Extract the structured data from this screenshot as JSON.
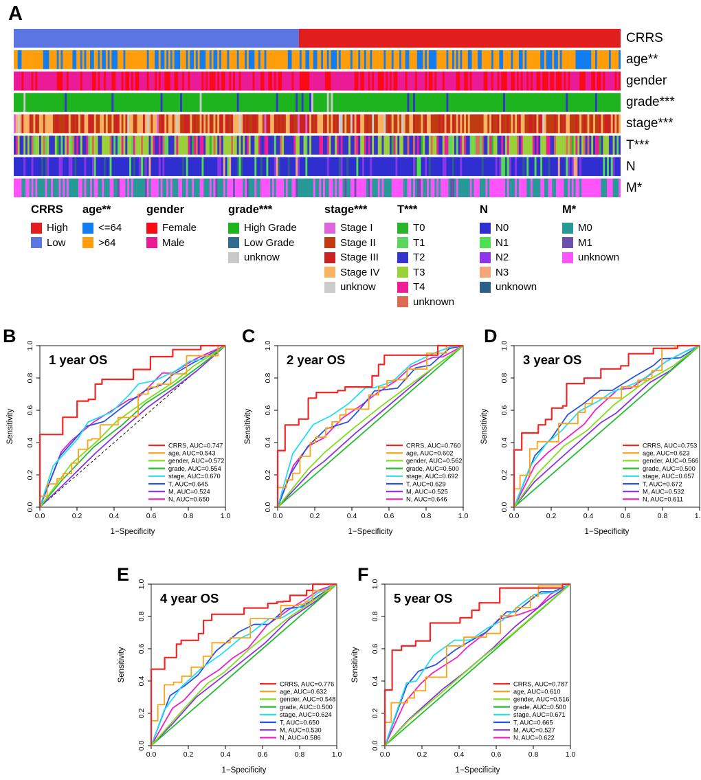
{
  "chart_data": [
    {
      "type": "heatmap",
      "panel_label": "A",
      "description": "Clinical annotation tracks of samples ordered by CRRS group",
      "tracks": [
        {
          "id": "CRRS",
          "label": "CRRS",
          "mode": "ordered",
          "segments": [
            {
              "name": "Low",
              "color": "#5b76e3",
              "fraction": 0.47
            },
            {
              "name": "High",
              "color": "#e11d1d",
              "fraction": 0.53
            }
          ]
        },
        {
          "id": "age",
          "label": "age**",
          "mode": "random",
          "categories": [
            {
              "name": "<=64",
              "color": "#127df0",
              "weight": 0.33
            },
            {
              "name": ">64",
              "color": "#ff9d0a",
              "weight": 0.67
            }
          ]
        },
        {
          "id": "gender",
          "label": "gender",
          "mode": "random",
          "categories": [
            {
              "name": "Female",
              "color": "#fa0a14",
              "weight": 0.35
            },
            {
              "name": "Male",
              "color": "#eb1a96",
              "weight": 0.65
            }
          ]
        },
        {
          "id": "grade",
          "label": "grade***",
          "mode": "random",
          "categories": [
            {
              "name": "High Grade",
              "color": "#1eb41e",
              "weight": 0.92
            },
            {
              "name": "Low Grade",
              "color": "#3534cd",
              "weight": 0.06
            },
            {
              "name": "unknow",
              "color": "#c9c9c9",
              "weight": 0.02
            }
          ]
        },
        {
          "id": "stage",
          "label": "stage***",
          "mode": "random",
          "categories": [
            {
              "name": "Stage I",
              "color": "#df65df",
              "weight": 0.03
            },
            {
              "name": "Stage II",
              "color": "#c03b10",
              "weight": 0.38
            },
            {
              "name": "Stage III",
              "color": "#cc2222",
              "weight": 0.24
            },
            {
              "name": "Stage IV",
              "color": "#f8b264",
              "weight": 0.32
            },
            {
              "name": "unknow",
              "color": "#cccccc",
              "weight": 0.03
            }
          ]
        },
        {
          "id": "T",
          "label": "T***",
          "mode": "random",
          "categories": [
            {
              "name": "T0",
              "color": "#2cb32c",
              "weight": 0.04
            },
            {
              "name": "T1",
              "color": "#5cd65c",
              "weight": 0.05
            },
            {
              "name": "T2",
              "color": "#3534cd",
              "weight": 0.28
            },
            {
              "name": "T3",
              "color": "#9ad13b",
              "weight": 0.38
            },
            {
              "name": "T4",
              "color": "#ef1d96",
              "weight": 0.16
            },
            {
              "name": "unknown",
              "color": "#dd6a55",
              "weight": 0.09
            }
          ]
        },
        {
          "id": "N",
          "label": "N",
          "mode": "random",
          "categories": [
            {
              "name": "N0",
              "color": "#2f2fd1",
              "weight": 0.66
            },
            {
              "name": "N1",
              "color": "#4fe050",
              "weight": 0.09
            },
            {
              "name": "N2",
              "color": "#8c35ea",
              "weight": 0.14
            },
            {
              "name": "N3",
              "color": "#f2a679",
              "weight": 0.03
            },
            {
              "name": "unknown",
              "color": "#2c5f88",
              "weight": 0.08
            }
          ]
        },
        {
          "id": "M",
          "label": "M*",
          "mode": "random",
          "categories": [
            {
              "name": "M0",
              "color": "#279a97",
              "weight": 0.45
            },
            {
              "name": "M1",
              "color": "#6b51ad",
              "weight": 0.05
            },
            {
              "name": "unknown",
              "color": "#fd54fb",
              "weight": 0.5
            }
          ]
        }
      ],
      "legend": [
        {
          "title": "CRRS",
          "items": [
            {
              "label": "High",
              "color": "#e11d1d"
            },
            {
              "label": "Low",
              "color": "#5b76e3"
            }
          ]
        },
        {
          "title": "age**",
          "items": [
            {
              "label": "<=64",
              "color": "#127df0"
            },
            {
              "label": ">64",
              "color": "#ff9d0a"
            }
          ]
        },
        {
          "title": "gender",
          "items": [
            {
              "label": "Female",
              "color": "#fa0a14"
            },
            {
              "label": "Male",
              "color": "#eb1a96"
            }
          ]
        },
        {
          "title": "grade***",
          "items": [
            {
              "label": "High Grade",
              "color": "#1eb41e"
            },
            {
              "label": "Low Grade",
              "color": "#2e6d8e"
            },
            {
              "label": "unknow",
              "color": "#c9c9c9"
            }
          ]
        },
        {
          "title": "stage***",
          "items": [
            {
              "label": "Stage I",
              "color": "#df65df"
            },
            {
              "label": "Stage II",
              "color": "#c03b10"
            },
            {
              "label": "Stage III",
              "color": "#cc2222"
            },
            {
              "label": "Stage IV",
              "color": "#f8b264"
            },
            {
              "label": "unknow",
              "color": "#cccccc"
            }
          ]
        },
        {
          "title": "T***",
          "items": [
            {
              "label": "T0",
              "color": "#2cb32c"
            },
            {
              "label": "T1",
              "color": "#5cd65c"
            },
            {
              "label": "T2",
              "color": "#3534cd"
            },
            {
              "label": "T3",
              "color": "#9ad13b"
            },
            {
              "label": "T4",
              "color": "#ef1d96"
            },
            {
              "label": "unknown",
              "color": "#dd6a55"
            }
          ]
        },
        {
          "title": "N",
          "items": [
            {
              "label": "N0",
              "color": "#2f2fd1"
            },
            {
              "label": "N1",
              "color": "#4fe050"
            },
            {
              "label": "N2",
              "color": "#8c35ea"
            },
            {
              "label": "N3",
              "color": "#f2a679"
            },
            {
              "label": "unknown",
              "color": "#2c5f88"
            }
          ]
        },
        {
          "title": "M*",
          "items": [
            {
              "label": "M0",
              "color": "#279a97"
            },
            {
              "label": "M1",
              "color": "#6b51ad"
            },
            {
              "label": "unknown",
              "color": "#fd54fb"
            }
          ]
        }
      ]
    },
    {
      "type": "line",
      "panel_label": "B",
      "title": "1 year OS",
      "xlabel": "1−Specificity",
      "ylabel": "Sensitivity",
      "xlim": [
        0,
        1
      ],
      "ylim": [
        0,
        1
      ],
      "ticks": [
        "0.0",
        "0.2",
        "0.4",
        "0.6",
        "0.8",
        "1.0"
      ],
      "series": [
        {
          "name": "CRRS",
          "auc": 0.747,
          "color": "#f62423",
          "legend_label": "CRRS, AUC=0.747"
        },
        {
          "name": "age",
          "auc": 0.543,
          "color": "#ffa113",
          "legend_label": "age, AUC=0.543"
        },
        {
          "name": "gender",
          "auc": 0.572,
          "color": "#7de01a",
          "legend_label": "gender, AUC=0.572"
        },
        {
          "name": "grade",
          "auc": 0.554,
          "color": "#21bd2f",
          "legend_label": "grade, AUC=0.554"
        },
        {
          "name": "stage",
          "auc": 0.67,
          "color": "#1fdff0",
          "legend_label": "stage, AUC=0.670"
        },
        {
          "name": "T",
          "auc": 0.645,
          "color": "#2b50e6",
          "legend_label": "T, AUC=0.645"
        },
        {
          "name": "M",
          "auc": 0.524,
          "color": "#8a30e3",
          "legend_label": "M, AUC=0.524"
        },
        {
          "name": "N",
          "auc": 0.65,
          "color": "#ef1fc5",
          "legend_label": "N, AUC=0.650"
        }
      ]
    },
    {
      "type": "line",
      "panel_label": "C",
      "title": "2 year OS",
      "xlabel": "1−Specificity",
      "ylabel": "Sensitivity",
      "xlim": [
        0,
        1
      ],
      "ylim": [
        0,
        1
      ],
      "ticks": [
        "0.0",
        "0.2",
        "0.4",
        "0.6",
        "0.8",
        "1.0"
      ],
      "series": [
        {
          "name": "CRRS",
          "auc": 0.76,
          "color": "#f62423",
          "legend_label": "CRRS, AUC=0.760"
        },
        {
          "name": "age",
          "auc": 0.602,
          "color": "#ffa113",
          "legend_label": "age, AUC=0.602"
        },
        {
          "name": "gender",
          "auc": 0.562,
          "color": "#7de01a",
          "legend_label": "gender, AUC=0.562"
        },
        {
          "name": "grade",
          "auc": 0.5,
          "color": "#21bd2f",
          "legend_label": "grade, AUC=0.500"
        },
        {
          "name": "stage",
          "auc": 0.692,
          "color": "#1fdff0",
          "legend_label": "stage, AUC=0.692"
        },
        {
          "name": "T",
          "auc": 0.629,
          "color": "#2b50e6",
          "legend_label": "T, AUC=0.629"
        },
        {
          "name": "M",
          "auc": 0.525,
          "color": "#8a30e3",
          "legend_label": "M, AUC=0.525"
        },
        {
          "name": "N",
          "auc": 0.646,
          "color": "#ef1fc5",
          "legend_label": "N, AUC=0.646"
        }
      ]
    },
    {
      "type": "line",
      "panel_label": "D",
      "title": "3 year OS",
      "xlabel": "1−Specificity",
      "ylabel": "Sensitivity",
      "xlim": [
        0,
        1
      ],
      "ylim": [
        0,
        1
      ],
      "ticks": [
        "0.0",
        "0.2",
        "0.4",
        "0.6",
        "0.8",
        "1.0"
      ],
      "series": [
        {
          "name": "CRRS",
          "auc": 0.753,
          "color": "#f62423",
          "legend_label": "CRRS, AUC=0.753"
        },
        {
          "name": "age",
          "auc": 0.623,
          "color": "#ffa113",
          "legend_label": "age, AUC=0.623"
        },
        {
          "name": "gender",
          "auc": 0.566,
          "color": "#7de01a",
          "legend_label": "gender, AUC=0.566"
        },
        {
          "name": "grade",
          "auc": 0.5,
          "color": "#21bd2f",
          "legend_label": "grade, AUC=0.500"
        },
        {
          "name": "stage",
          "auc": 0.657,
          "color": "#1fdff0",
          "legend_label": "stage, AUC=0.657"
        },
        {
          "name": "T",
          "auc": 0.672,
          "color": "#2b50e6",
          "legend_label": "T, AUC=0.672"
        },
        {
          "name": "M",
          "auc": 0.532,
          "color": "#8a30e3",
          "legend_label": "M, AUC=0.532"
        },
        {
          "name": "N",
          "auc": 0.611,
          "color": "#ef1fc5",
          "legend_label": "N, AUC=0.611"
        }
      ]
    },
    {
      "type": "line",
      "panel_label": "E",
      "title": "4 year OS",
      "xlabel": "1−Specificity",
      "ylabel": "Sensitivity",
      "xlim": [
        0,
        1
      ],
      "ylim": [
        0,
        1
      ],
      "ticks": [
        "0.0",
        "0.2",
        "0.4",
        "0.6",
        "0.8",
        "1.0"
      ],
      "series": [
        {
          "name": "CRRS",
          "auc": 0.776,
          "color": "#f62423",
          "legend_label": "CRRS, AUC=0.776"
        },
        {
          "name": "age",
          "auc": 0.632,
          "color": "#ffa113",
          "legend_label": "age, AUC=0.632"
        },
        {
          "name": "gender",
          "auc": 0.548,
          "color": "#7de01a",
          "legend_label": "gender, AUC=0.548"
        },
        {
          "name": "grade",
          "auc": 0.5,
          "color": "#21bd2f",
          "legend_label": "grade, AUC=0.500"
        },
        {
          "name": "stage",
          "auc": 0.624,
          "color": "#1fdff0",
          "legend_label": "stage, AUC=0.624"
        },
        {
          "name": "T",
          "auc": 0.65,
          "color": "#2b50e6",
          "legend_label": "T, AUC=0.650"
        },
        {
          "name": "M",
          "auc": 0.53,
          "color": "#8a30e3",
          "legend_label": "M, AUC=0.530"
        },
        {
          "name": "N",
          "auc": 0.586,
          "color": "#ef1fc5",
          "legend_label": "N, AUC=0.586"
        }
      ]
    },
    {
      "type": "line",
      "panel_label": "F",
      "title": "5 year OS",
      "xlabel": "1−Specificity",
      "ylabel": "Sensitivity",
      "xlim": [
        0,
        1
      ],
      "ylim": [
        0,
        1
      ],
      "ticks": [
        "0.0",
        "0.2",
        "0.4",
        "0.6",
        "0.8",
        "1.0"
      ],
      "series": [
        {
          "name": "CRRS",
          "auc": 0.787,
          "color": "#f62423",
          "legend_label": "CRRS, AUC=0.787"
        },
        {
          "name": "age",
          "auc": 0.61,
          "color": "#ffa113",
          "legend_label": "age, AUC=0.610"
        },
        {
          "name": "gender",
          "auc": 0.516,
          "color": "#7de01a",
          "legend_label": "gender, AUC=0.516"
        },
        {
          "name": "grade",
          "auc": 0.5,
          "color": "#21bd2f",
          "legend_label": "grade, AUC=0.500"
        },
        {
          "name": "stage",
          "auc": 0.671,
          "color": "#1fdff0",
          "legend_label": "stage, AUC=0.671"
        },
        {
          "name": "T",
          "auc": 0.665,
          "color": "#2b50e6",
          "legend_label": "T, AUC=0.665"
        },
        {
          "name": "M",
          "auc": 0.527,
          "color": "#8a30e3",
          "legend_label": "M, AUC=0.527"
        },
        {
          "name": "N",
          "auc": 0.622,
          "color": "#ef1fc5",
          "legend_label": "N, AUC=0.622"
        }
      ]
    }
  ]
}
